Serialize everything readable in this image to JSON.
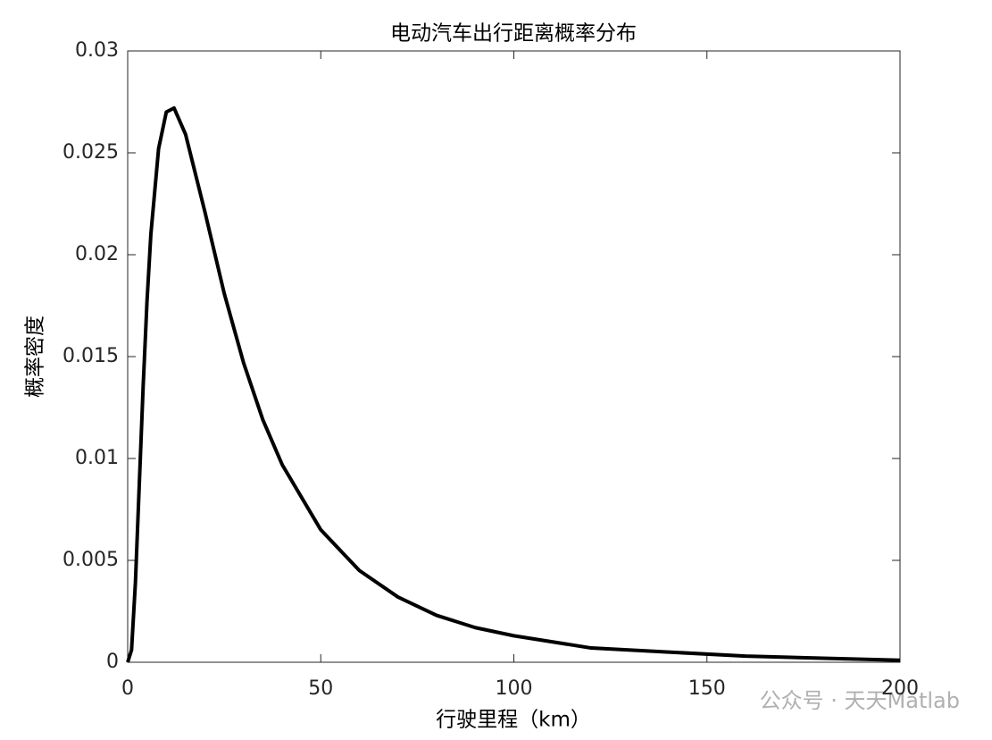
{
  "chart_data": {
    "type": "line",
    "title": "电动汽车出行距离概率分布",
    "x_label": "行驶里程（km）",
    "y_label": "概率密度",
    "watermark": "公众号 · 天天Matlab",
    "x": [
      0,
      1,
      2,
      3,
      4,
      5,
      6,
      8,
      10,
      12,
      15,
      20,
      25,
      30,
      35,
      40,
      50,
      60,
      70,
      80,
      90,
      100,
      120,
      140,
      160,
      180,
      200
    ],
    "series": [
      {
        "color": "#000000",
        "values": [
          0,
          0.0006,
          0.0039,
          0.0087,
          0.0135,
          0.0177,
          0.021,
          0.0252,
          0.027,
          0.0272,
          0.0259,
          0.0221,
          0.0181,
          0.0147,
          0.0119,
          0.0097,
          0.0065,
          0.0045,
          0.0032,
          0.0023,
          0.0017,
          0.0013,
          0.0007,
          0.0005,
          0.0003,
          0.0002,
          0.0001
        ]
      }
    ],
    "xlim": [
      0,
      200
    ],
    "ylim": [
      0,
      0.03
    ],
    "xticks": [
      0,
      50,
      100,
      150,
      200
    ],
    "yticks": [
      0,
      0.005,
      0.01,
      0.015,
      0.02,
      0.025,
      0.03
    ]
  }
}
